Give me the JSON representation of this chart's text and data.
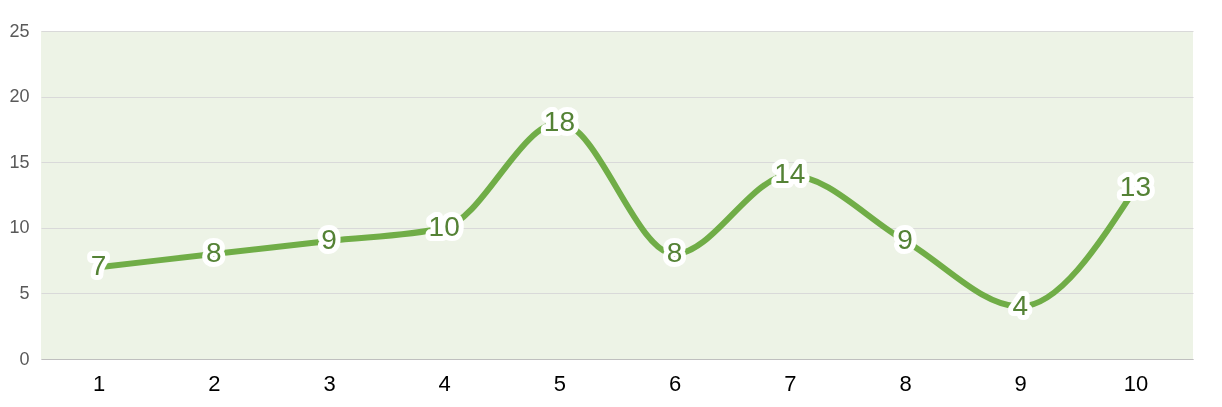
{
  "chart_data": {
    "type": "line",
    "categories": [
      "1",
      "2",
      "3",
      "4",
      "5",
      "6",
      "7",
      "8",
      "9",
      "10"
    ],
    "series": [
      {
        "color": "#70ad47",
        "values": [
          7,
          8,
          9,
          10,
          18,
          8,
          14,
          9,
          4,
          13
        ]
      }
    ],
    "ylim": [
      0,
      25
    ],
    "yticks": [
      0,
      5,
      10,
      15,
      20,
      25
    ],
    "grid": "y",
    "data_labels": true
  }
}
